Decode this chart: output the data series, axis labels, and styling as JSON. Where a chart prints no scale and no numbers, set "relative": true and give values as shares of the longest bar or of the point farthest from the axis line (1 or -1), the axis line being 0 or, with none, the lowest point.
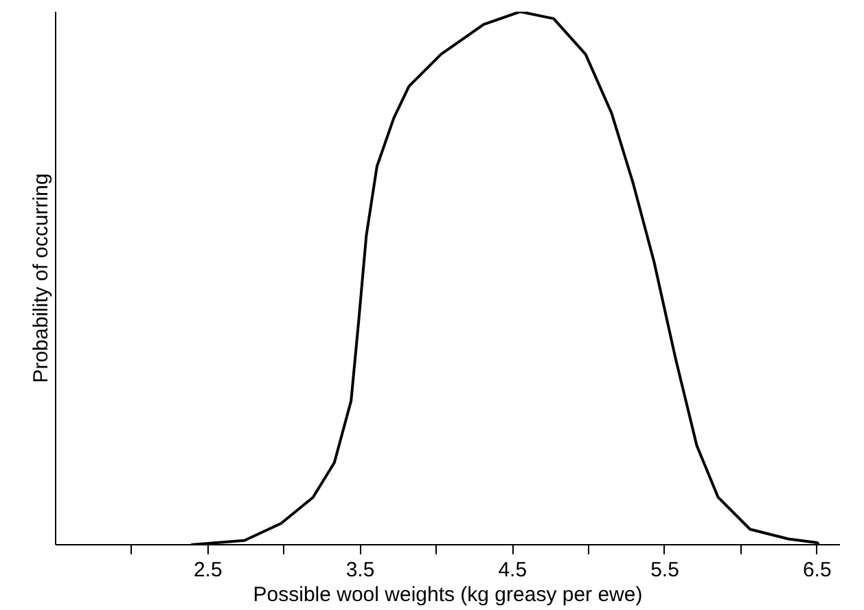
{
  "chart_data": {
    "type": "line",
    "relative": true,
    "xlabel": "Possible wool weights (kg greasy per ewe)",
    "ylabel": "Probability of occurring",
    "x": [
      2.39,
      2.74,
      2.98,
      3.19,
      3.33,
      3.44,
      3.49,
      3.54,
      3.61,
      3.72,
      3.82,
      4.03,
      4.31,
      4.55,
      4.77,
      4.98,
      5.15,
      5.29,
      5.43,
      5.57,
      5.71,
      5.85,
      6.06,
      6.31,
      6.5,
      6.51
    ],
    "series": [
      {
        "color": "#000000",
        "values": [
          0,
          0.008,
          0.04,
          0.089,
          0.154,
          0.27,
          0.42,
          0.58,
          0.71,
          0.8,
          0.86,
          0.92,
          0.976,
          1.0,
          0.987,
          0.92,
          0.81,
          0.68,
          0.53,
          0.35,
          0.186,
          0.089,
          0.029,
          0.011,
          0.004,
          0
        ]
      }
    ],
    "xlim": [
      1.5,
      6.65
    ],
    "xticks": [
      {
        "value": 2.0,
        "label": null
      },
      2.5,
      {
        "value": 3.0,
        "label": null
      },
      3.5,
      {
        "value": 4.0,
        "label": null
      },
      4.5,
      {
        "value": 5.0,
        "label": null
      },
      5.5,
      {
        "value": 6.0,
        "label": null
      },
      6.5
    ],
    "grid": false,
    "marker": "none",
    "line_style": "solid"
  }
}
